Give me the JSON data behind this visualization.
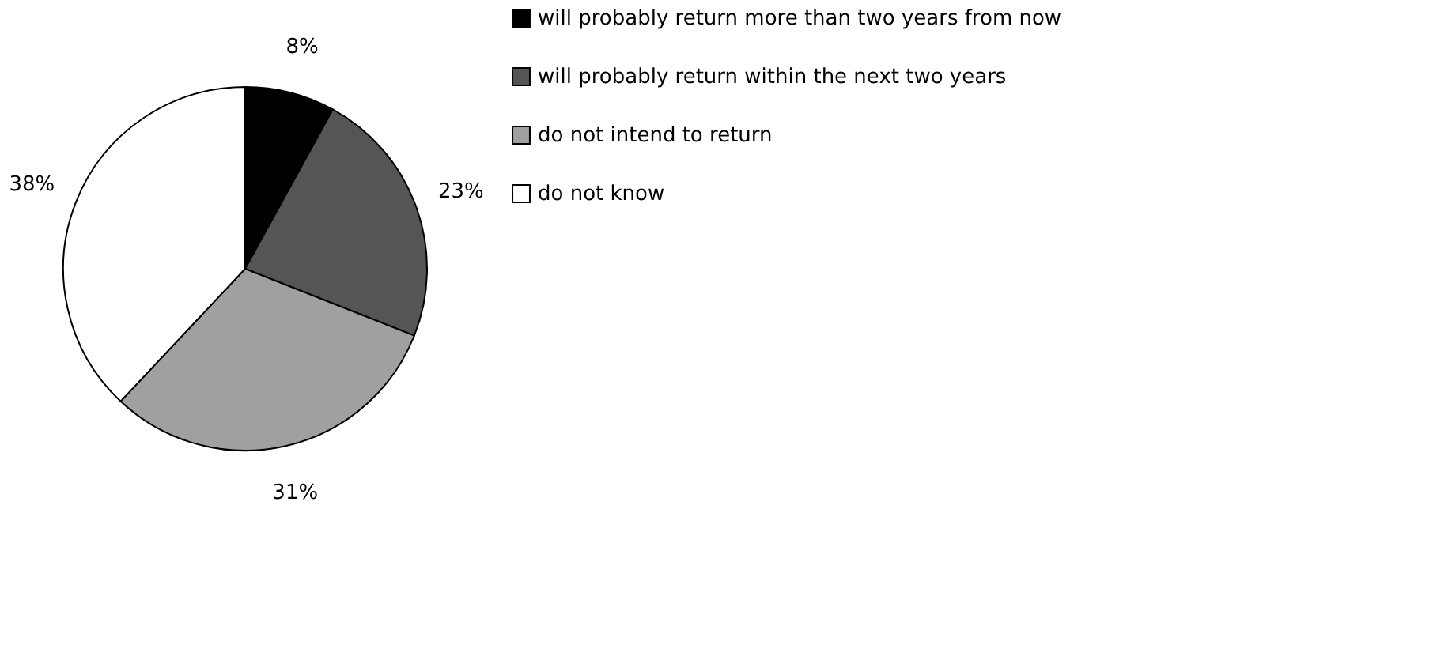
{
  "chart_data": {
    "type": "pie",
    "categories": [
      "will probably return more than two years from now",
      "will probably return within the next two years",
      "do not intend to return",
      "do not know"
    ],
    "values": [
      8,
      23,
      31,
      38
    ],
    "value_labels": [
      "8%",
      "23%",
      "31%",
      "38%"
    ],
    "colors": [
      "#000000",
      "#555555",
      "#a0a0a0",
      "#ffffff"
    ],
    "legend": "right"
  }
}
